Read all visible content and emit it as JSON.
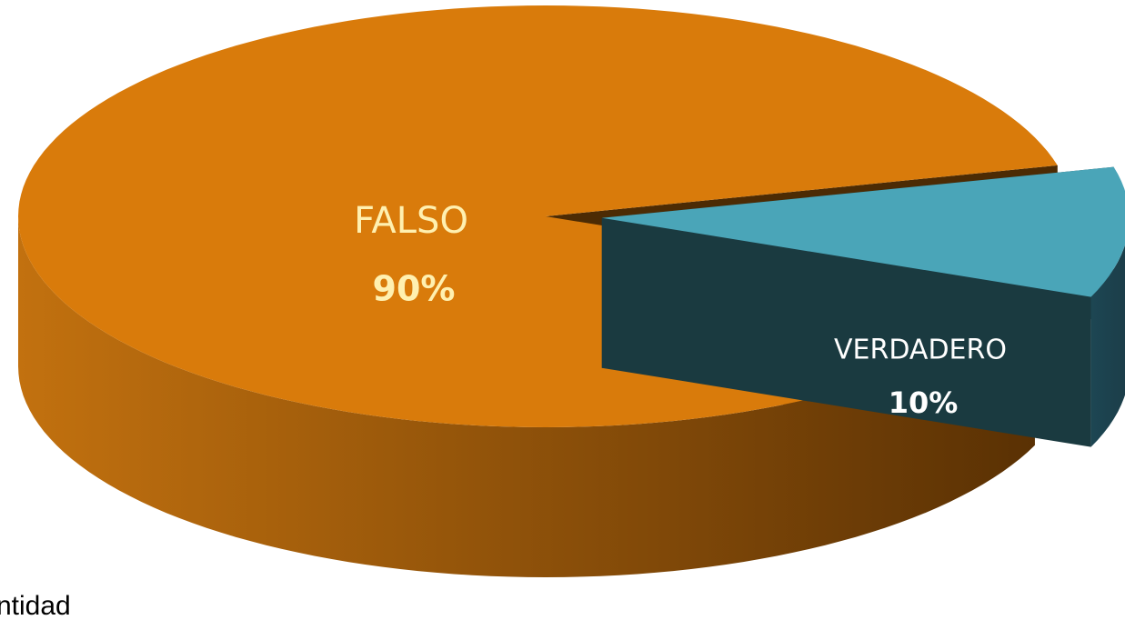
{
  "chart_data": {
    "type": "pie3d",
    "categories": [
      "FALSO",
      "VERDADERO"
    ],
    "values": [
      90,
      10
    ],
    "value_labels": [
      "90%",
      "10%"
    ],
    "colors": [
      "#d97b0b",
      "#4aa5b8"
    ],
    "exploded": [
      false,
      true
    ],
    "footer_text": "ntidad"
  }
}
